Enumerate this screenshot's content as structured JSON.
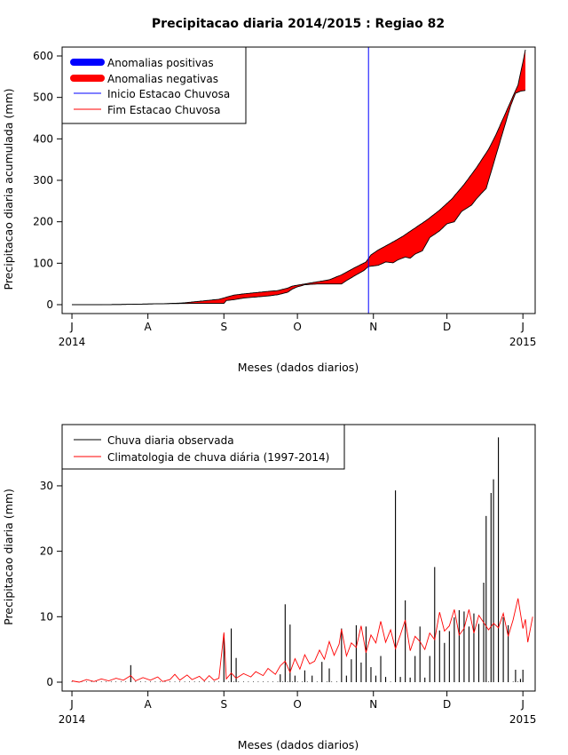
{
  "colors": {
    "positive": "#0000ff",
    "negative": "#ff0000",
    "start_line": "#0000ff",
    "end_line": "#ff0000",
    "observed": "#000000",
    "climatology": "#ff0000"
  },
  "chart_data": [
    {
      "type": "area",
      "title": "Precipitacao diaria 2014/2015 : Regiao 82",
      "xlabel": "Meses (dados diarios)",
      "ylabel": "Precipitacao diaria acumulada (mm)",
      "ylim": [
        0,
        600
      ],
      "yticks": [
        0,
        100,
        200,
        300,
        400,
        500,
        600
      ],
      "x_unit": "days since 2014-07-01",
      "xlim": [
        -4,
        189
      ],
      "xticks": [
        {
          "day": 0,
          "label": "J",
          "sub": "2014"
        },
        {
          "day": 31,
          "label": "A",
          "sub": ""
        },
        {
          "day": 62,
          "label": "S",
          "sub": ""
        },
        {
          "day": 92,
          "label": "O",
          "sub": ""
        },
        {
          "day": 123,
          "label": "N",
          "sub": ""
        },
        {
          "day": 153,
          "label": "D",
          "sub": ""
        },
        {
          "day": 184,
          "label": "J",
          "sub": "2015"
        }
      ],
      "legend": {
        "position": "top-left",
        "items": [
          {
            "label": "Anomalias positivas",
            "style": "thick",
            "color_key": "positive"
          },
          {
            "label": "Anomalias negativas",
            "style": "thick",
            "color_key": "negative"
          },
          {
            "label": "Inicio Estacao Chuvosa",
            "style": "thin",
            "color_key": "start_line"
          },
          {
            "label": "Fim Estacao Chuvosa",
            "style": "thin",
            "color_key": "end_line"
          }
        ]
      },
      "rainy_season_start_day": 121,
      "series": [
        {
          "name": "Climatologia acumulada",
          "points": [
            [
              0,
              0
            ],
            [
              10,
              0
            ],
            [
              20,
              0.5
            ],
            [
              30,
              1.5
            ],
            [
              38,
              2.5
            ],
            [
              45,
              4
            ],
            [
              50,
              7
            ],
            [
              55,
              10
            ],
            [
              60,
              13
            ],
            [
              63,
              18
            ],
            [
              66,
              23
            ],
            [
              70,
              26
            ],
            [
              75,
              29
            ],
            [
              80,
              32
            ],
            [
              84,
              34
            ],
            [
              88,
              40
            ],
            [
              90,
              45
            ],
            [
              93,
              48
            ],
            [
              96,
              51
            ],
            [
              100,
              55
            ],
            [
              105,
              60
            ],
            [
              110,
              72
            ],
            [
              115,
              88
            ],
            [
              120,
              103
            ],
            [
              122,
              120
            ],
            [
              125,
              132
            ],
            [
              130,
              148
            ],
            [
              135,
              165
            ],
            [
              140,
              185
            ],
            [
              145,
              205
            ],
            [
              150,
              228
            ],
            [
              155,
              255
            ],
            [
              160,
              290
            ],
            [
              165,
              330
            ],
            [
              170,
              375
            ],
            [
              173,
              410
            ],
            [
              176,
              450
            ],
            [
              179,
              490
            ],
            [
              182,
              530
            ],
            [
              184,
              585
            ],
            [
              185,
              615
            ]
          ]
        },
        {
          "name": "Observado acumulado",
          "points": [
            [
              0,
              0
            ],
            [
              10,
              0
            ],
            [
              20,
              0.5
            ],
            [
              25,
              1
            ],
            [
              30,
              1.5
            ],
            [
              35,
              2
            ],
            [
              40,
              2.5
            ],
            [
              50,
              3
            ],
            [
              58,
              3
            ],
            [
              62,
              3
            ],
            [
              63,
              10
            ],
            [
              66,
              12
            ],
            [
              70,
              16
            ],
            [
              74,
              18
            ],
            [
              80,
              21
            ],
            [
              84,
              24
            ],
            [
              88,
              30
            ],
            [
              90,
              38
            ],
            [
              92,
              43
            ],
            [
              95,
              48
            ],
            [
              100,
              50
            ],
            [
              110,
              50
            ],
            [
              112,
              58
            ],
            [
              116,
              72
            ],
            [
              119,
              82
            ],
            [
              121,
              92
            ],
            [
              125,
              95
            ],
            [
              128,
              103
            ],
            [
              131,
              101
            ],
            [
              133,
              108
            ],
            [
              136,
              115
            ],
            [
              138,
              112
            ],
            [
              140,
              122
            ],
            [
              143,
              130
            ],
            [
              146,
              162
            ],
            [
              150,
              178
            ],
            [
              153,
              195
            ],
            [
              156,
              200
            ],
            [
              159,
              225
            ],
            [
              163,
              240
            ],
            [
              165,
              255
            ],
            [
              167,
              268
            ],
            [
              169,
              280
            ],
            [
              171,
              320
            ],
            [
              173,
              360
            ],
            [
              175,
              400
            ],
            [
              177,
              440
            ],
            [
              179,
              480
            ],
            [
              181,
              510
            ],
            [
              183,
              515
            ],
            [
              185,
              517
            ]
          ]
        }
      ]
    },
    {
      "type": "bar+line",
      "xlabel": "Meses (dados diarios)",
      "ylabel": "Precipitacao diaria (mm)",
      "ylim": [
        0,
        38
      ],
      "yticks": [
        0,
        10,
        20,
        30
      ],
      "x_unit": "days since 2014-07-01",
      "xlim": [
        -4,
        189
      ],
      "xticks": [
        {
          "day": 0,
          "label": "J",
          "sub": "2014"
        },
        {
          "day": 31,
          "label": "A",
          "sub": ""
        },
        {
          "day": 62,
          "label": "S",
          "sub": ""
        },
        {
          "day": 92,
          "label": "O",
          "sub": ""
        },
        {
          "day": 123,
          "label": "N",
          "sub": ""
        },
        {
          "day": 153,
          "label": "D",
          "sub": ""
        },
        {
          "day": 184,
          "label": "J",
          "sub": "2015"
        }
      ],
      "legend": {
        "position": "top-left",
        "items": [
          {
            "label": "Chuva diaria observada",
            "color_key": "observed"
          },
          {
            "label": "Climatologia de chuva diária (1997-2014)",
            "color_key": "climatology"
          }
        ]
      },
      "observed_bars": [
        [
          24,
          2.6
        ],
        [
          62,
          7.3
        ],
        [
          65,
          8.2
        ],
        [
          67,
          3.7
        ],
        [
          85,
          1.2
        ],
        [
          87,
          11.9
        ],
        [
          89,
          8.8
        ],
        [
          91,
          1.0
        ],
        [
          95,
          1.8
        ],
        [
          98,
          1.0
        ],
        [
          102,
          3.1
        ],
        [
          105,
          2.1
        ],
        [
          110,
          8.2
        ],
        [
          112,
          1.0
        ],
        [
          114,
          3.5
        ],
        [
          116,
          8.7
        ],
        [
          118,
          3.0
        ],
        [
          120,
          8.5
        ],
        [
          122,
          2.3
        ],
        [
          124,
          1.0
        ],
        [
          126,
          4.0
        ],
        [
          128,
          0.8
        ],
        [
          132,
          29.3
        ],
        [
          134,
          0.8
        ],
        [
          136,
          12.5
        ],
        [
          138,
          0.7
        ],
        [
          140,
          4.0
        ],
        [
          142,
          8.5
        ],
        [
          144,
          0.7
        ],
        [
          146,
          4.0
        ],
        [
          148,
          17.6
        ],
        [
          150,
          7.9
        ],
        [
          152,
          6.0
        ],
        [
          154,
          7.8
        ],
        [
          156,
          9.9
        ],
        [
          158,
          11.0
        ],
        [
          160,
          10.8
        ],
        [
          162,
          8.5
        ],
        [
          164,
          10.5
        ],
        [
          166,
          8.9
        ],
        [
          168,
          15.2
        ],
        [
          169,
          25.4
        ],
        [
          171,
          28.9
        ],
        [
          172,
          31.0
        ],
        [
          174,
          37.4
        ],
        [
          176,
          9.9
        ],
        [
          178,
          8.7
        ],
        [
          181,
          1.9
        ],
        [
          183,
          0.5
        ],
        [
          184,
          1.9
        ]
      ],
      "climatology_line": [
        [
          0,
          0.2
        ],
        [
          3,
          0.0
        ],
        [
          6,
          0.4
        ],
        [
          9,
          0.1
        ],
        [
          12,
          0.5
        ],
        [
          15,
          0.2
        ],
        [
          18,
          0.6
        ],
        [
          21,
          0.3
        ],
        [
          24,
          1.0
        ],
        [
          26,
          0.2
        ],
        [
          29,
          0.7
        ],
        [
          32,
          0.3
        ],
        [
          35,
          0.8
        ],
        [
          37,
          0.1
        ],
        [
          40,
          0.4
        ],
        [
          42,
          1.2
        ],
        [
          44,
          0.3
        ],
        [
          47,
          1.1
        ],
        [
          49,
          0.4
        ],
        [
          52,
          0.9
        ],
        [
          54,
          0.2
        ],
        [
          56,
          1.0
        ],
        [
          58,
          0.3
        ],
        [
          60,
          0.6
        ],
        [
          62,
          7.6
        ],
        [
          63,
          0.5
        ],
        [
          65,
          1.4
        ],
        [
          67,
          0.6
        ],
        [
          70,
          1.3
        ],
        [
          73,
          0.8
        ],
        [
          75,
          1.6
        ],
        [
          78,
          1.0
        ],
        [
          80,
          2.1
        ],
        [
          83,
          1.2
        ],
        [
          85,
          2.5
        ],
        [
          87,
          3.2
        ],
        [
          89,
          1.5
        ],
        [
          91,
          3.6
        ],
        [
          93,
          2.0
        ],
        [
          95,
          4.2
        ],
        [
          97,
          2.8
        ],
        [
          99,
          3.2
        ],
        [
          101,
          4.9
        ],
        [
          103,
          3.5
        ],
        [
          105,
          6.2
        ],
        [
          107,
          4.1
        ],
        [
          109,
          5.8
        ],
        [
          110,
          8.1
        ],
        [
          112,
          4.0
        ],
        [
          114,
          6.0
        ],
        [
          116,
          5.3
        ],
        [
          118,
          8.6
        ],
        [
          120,
          4.5
        ],
        [
          122,
          7.2
        ],
        [
          124,
          6.0
        ],
        [
          126,
          9.3
        ],
        [
          128,
          6.1
        ],
        [
          130,
          8.0
        ],
        [
          132,
          5.1
        ],
        [
          134,
          7.2
        ],
        [
          136,
          9.5
        ],
        [
          138,
          4.8
        ],
        [
          140,
          7.0
        ],
        [
          142,
          6.2
        ],
        [
          144,
          5.0
        ],
        [
          146,
          7.5
        ],
        [
          148,
          6.5
        ],
        [
          150,
          10.7
        ],
        [
          152,
          7.8
        ],
        [
          154,
          8.6
        ],
        [
          156,
          11.1
        ],
        [
          158,
          7.2
        ],
        [
          160,
          8.2
        ],
        [
          162,
          11.1
        ],
        [
          164,
          7.5
        ],
        [
          166,
          10.2
        ],
        [
          168,
          9.1
        ],
        [
          170,
          8.0
        ],
        [
          172,
          9.0
        ],
        [
          174,
          8.3
        ],
        [
          176,
          10.5
        ],
        [
          178,
          7.0
        ],
        [
          180,
          9.5
        ],
        [
          182,
          12.8
        ],
        [
          184,
          8.2
        ],
        [
          185,
          9.6
        ],
        [
          186,
          6.1
        ],
        [
          188,
          10.0
        ]
      ]
    }
  ]
}
